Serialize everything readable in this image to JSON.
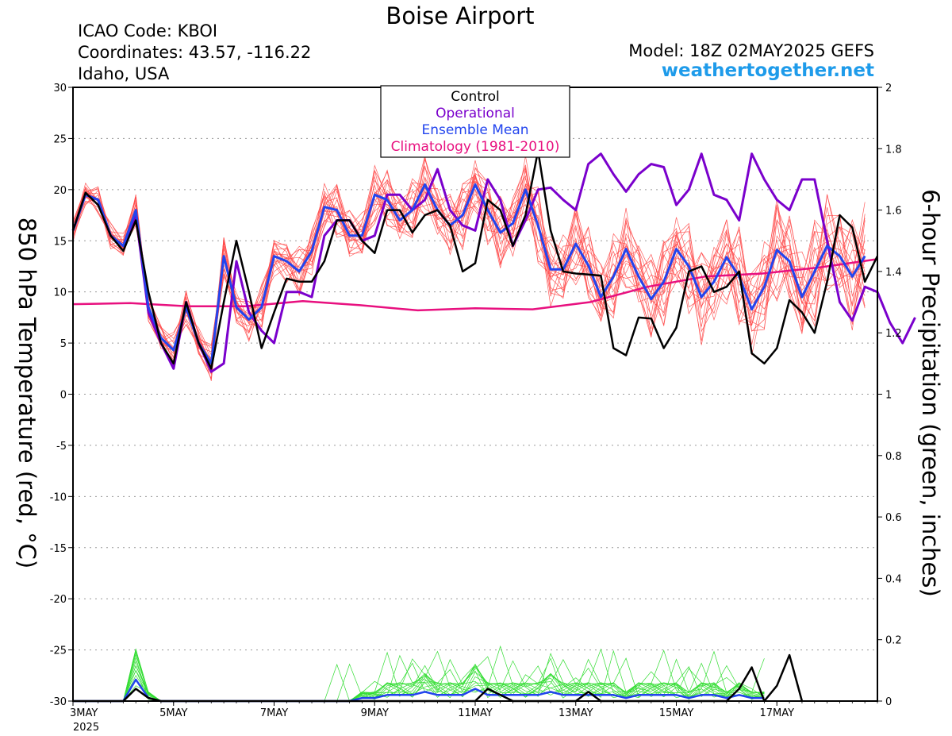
{
  "header": {
    "title": "Boise Airport",
    "icao": "ICAO Code: KBOI",
    "coordinates": "Coordinates: 43.57, -116.22",
    "region": "Idaho, USA",
    "model": "Model: 18Z 02MAY2025 GEFS",
    "site": "weathertogether.net"
  },
  "colors": {
    "control": "#000000",
    "operational": "#7a00cc",
    "ensemble_mean": "#2244ee",
    "climatology": "#e8107f",
    "members_temp": "#ff4a4a",
    "members_precip": "#33dd33"
  },
  "chart_data": {
    "type": "line",
    "title": "Boise Airport",
    "ylabel": "850 hPa Temperature (red, °C)",
    "y2label": "6-hour Precipitation (green, inches)",
    "ylim": [
      -30,
      30
    ],
    "y2lim": [
      0,
      2
    ],
    "yticks": [
      "30",
      "25",
      "20",
      "15",
      "10",
      "5",
      "0",
      "-5",
      "-10",
      "-15",
      "-20",
      "-25",
      "-30"
    ],
    "y2ticks": [
      "2",
      "1.8",
      "1.6",
      "1.4",
      "1.2",
      "1",
      "0.8",
      "0.6",
      "0.4",
      "0.2",
      "0"
    ],
    "xticks": [
      {
        "label": "3MAY",
        "sub": "2025",
        "t": 0
      },
      {
        "label": "5MAY",
        "t": 8
      },
      {
        "label": "7MAY",
        "t": 16
      },
      {
        "label": "9MAY",
        "t": 24
      },
      {
        "label": "11MAY",
        "t": 32
      },
      {
        "label": "13MAY",
        "t": 40
      },
      {
        "label": "15MAY",
        "t": 48
      },
      {
        "label": "17MAY",
        "t": 56
      }
    ],
    "x_step": "6 hours, starting 00Z 03MAY2025",
    "grid": true,
    "legend": [
      "Control",
      "Operational",
      "Ensemble Mean",
      "Climatology (1981-2010)"
    ],
    "legend_position": "top-center",
    "series": [
      {
        "name": "Control",
        "axis": "temperature",
        "values": [
          16,
          19.7,
          18.5,
          15.5,
          14,
          17,
          10,
          5,
          3,
          9,
          5,
          2.5,
          9,
          15,
          10,
          4.5,
          8,
          11.3,
          11,
          11,
          13,
          17,
          17,
          15,
          13.8,
          18,
          18,
          15.8,
          17.5,
          18,
          16.5,
          12,
          12.8,
          19,
          18,
          14.5,
          17.5,
          23.8,
          16,
          12,
          11.8,
          11.7,
          11.6,
          4.5,
          3.8,
          7.5,
          7.4,
          4.5,
          6.5,
          12,
          12.5,
          10,
          10.5,
          12,
          4,
          3,
          4.5,
          9.2,
          8,
          6,
          11,
          17.5,
          16.3,
          11,
          13.5
        ]
      },
      {
        "name": "Operational",
        "axis": "temperature",
        "values": [
          16,
          19.5,
          19,
          15.5,
          14.5,
          17.5,
          8,
          5,
          2.5,
          9,
          5,
          2.2,
          3,
          13,
          8,
          6.2,
          5,
          10,
          10,
          9.5,
          15.5,
          17,
          17,
          15,
          15.5,
          19.5,
          19.5,
          18,
          19,
          22,
          18,
          16.5,
          16,
          21,
          19,
          14.5,
          17,
          20,
          20.2,
          19,
          18,
          22.5,
          23.5,
          21.5,
          19.8,
          21.5,
          22.5,
          22.2,
          18.5,
          20,
          23.5,
          19.5,
          19,
          17,
          23.5,
          21,
          19,
          18,
          21,
          21,
          15,
          9,
          7.2,
          10.5,
          10,
          7,
          5,
          7.5
        ]
      },
      {
        "name": "Ensemble Mean",
        "axis": "temperature",
        "values": [
          16,
          19.5,
          19,
          15.5,
          14.5,
          18,
          8.5,
          5.5,
          4.3,
          8.5,
          5,
          3,
          13.5,
          8.5,
          7.3,
          8.5,
          13.5,
          13,
          12,
          14,
          18.3,
          18,
          15.5,
          15.5,
          19.5,
          19,
          17,
          18,
          20.5,
          18,
          16.5,
          17.5,
          20.5,
          18,
          15.8,
          16.7,
          20,
          16.5,
          12.2,
          12.2,
          14.7,
          12.6,
          9.5,
          11.5,
          14.2,
          11.5,
          9.3,
          11,
          14.2,
          12.5,
          9.5,
          11,
          13.4,
          11.5,
          8.3,
          10.5,
          14.1,
          13,
          9.5,
          12,
          14.5,
          13.5,
          11.5,
          13.5
        ]
      },
      {
        "name": "Climatology (1981-2010)",
        "axis": "temperature",
        "values": [
          8.8,
          8.9,
          8.6,
          8.6,
          9.1,
          8.7,
          8.2,
          8.4,
          8.3,
          9,
          10.5,
          11.5,
          11.8,
          12.4,
          13.2
        ]
      },
      {
        "name": "Control precipitation",
        "axis": "precipitation",
        "values": [
          0,
          0,
          0,
          0,
          0,
          0.04,
          0.01,
          0,
          0,
          0,
          0,
          0,
          0,
          0,
          0,
          0,
          0,
          0,
          0,
          0,
          0,
          0,
          0,
          0,
          0,
          0,
          0,
          0,
          0,
          0,
          0,
          0,
          0,
          0.04,
          0.02,
          0,
          0,
          0,
          0,
          0,
          0,
          0.03,
          0,
          0,
          0,
          0,
          0,
          0,
          0,
          0,
          0,
          0,
          0,
          0.04,
          0.11,
          0,
          0.05,
          0.15,
          0
        ]
      },
      {
        "name": "Ensemble Mean precipitation",
        "axis": "precipitation",
        "values": [
          0,
          0,
          0,
          0,
          0,
          0.07,
          0.01,
          0,
          0,
          0,
          0,
          0,
          0,
          0,
          0,
          0,
          0,
          0,
          0,
          0,
          0,
          0,
          0,
          0.01,
          0.01,
          0.02,
          0.02,
          0.02,
          0.03,
          0.02,
          0.02,
          0.02,
          0.04,
          0.02,
          0.02,
          0.02,
          0.02,
          0.02,
          0.03,
          0.02,
          0.02,
          0.02,
          0.02,
          0.02,
          0.01,
          0.02,
          0.02,
          0.02,
          0.02,
          0.01,
          0.02,
          0.02,
          0.01,
          0.02,
          0.01,
          0.01
        ]
      }
    ]
  }
}
